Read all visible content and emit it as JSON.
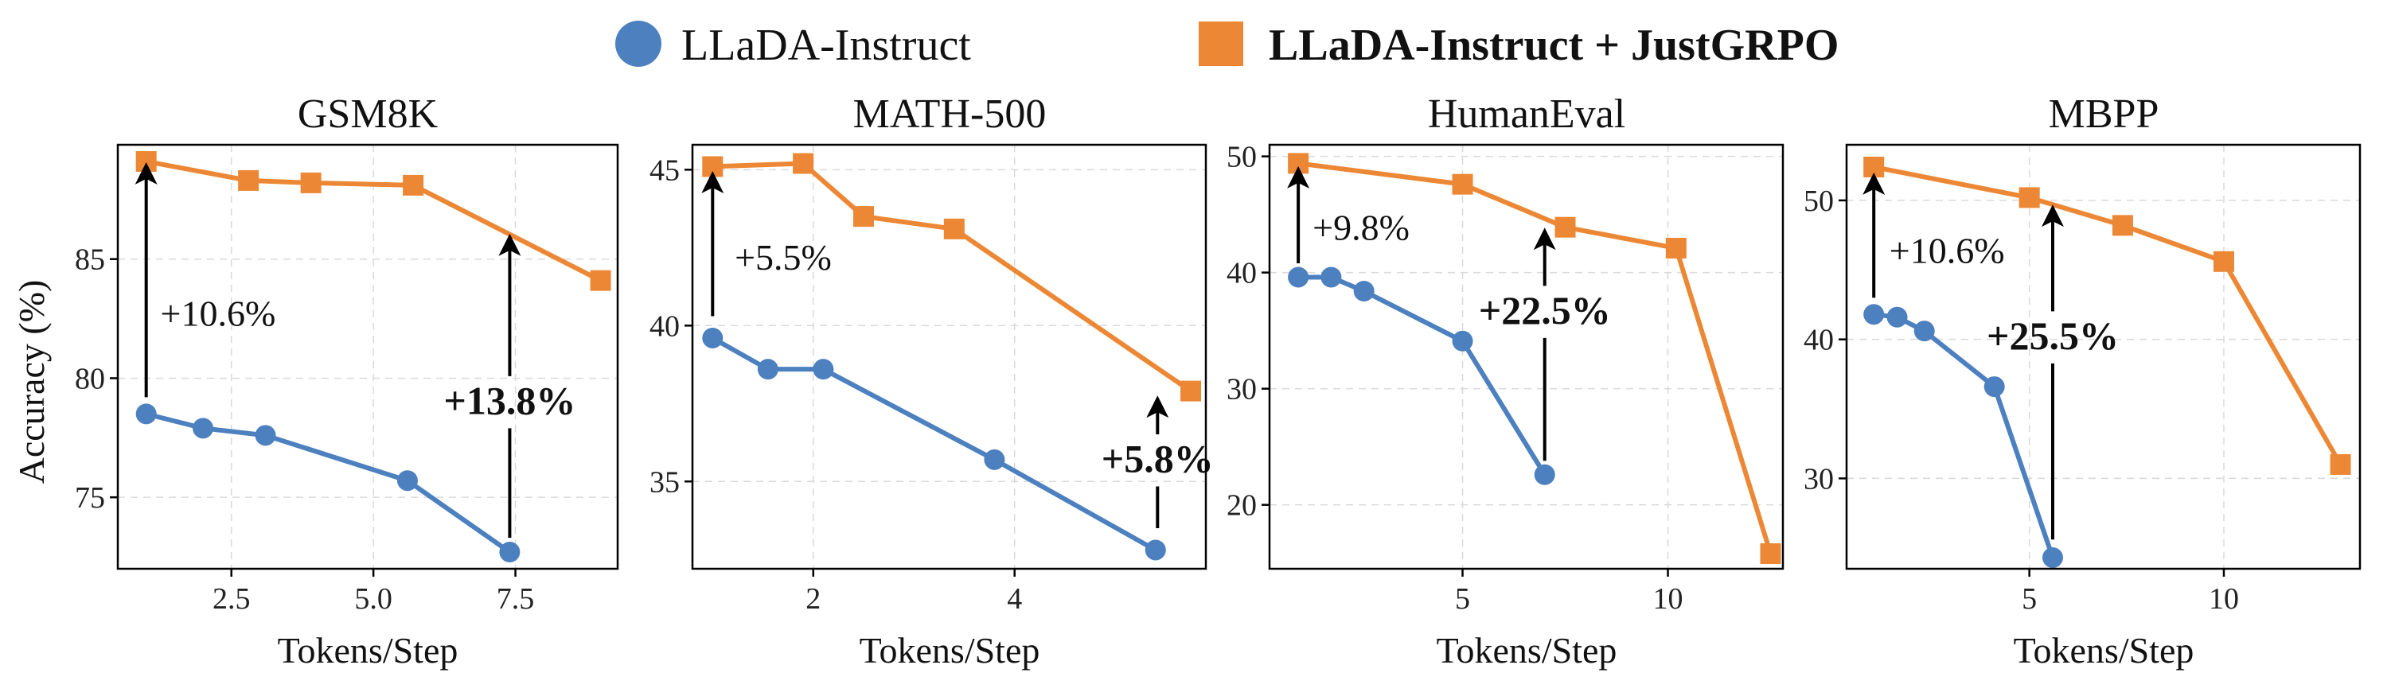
{
  "legend": {
    "series_a": "LLaDA-Instruct",
    "series_b": "LLaDA-Instruct + JustGRPO"
  },
  "colors": {
    "series_a": "#4c80bf",
    "series_b": "#ec8835",
    "arrow": "#000000"
  },
  "chart_data": [
    {
      "type": "line",
      "title": "GSM8K",
      "xlabel": "Tokens/Step",
      "ylabel": "Accuracy (%)",
      "xlim": [
        0.5,
        9.3
      ],
      "ylim": [
        72.0,
        89.8
      ],
      "xticks": [
        2.5,
        5.0,
        7.5
      ],
      "xtick_labels": [
        "2.5",
        "5.0",
        "7.5"
      ],
      "yticks": [
        75,
        80,
        85
      ],
      "ytick_labels": [
        "75",
        "80",
        "85"
      ],
      "grid": true,
      "series": [
        {
          "name": "LLaDA-Instruct",
          "x": [
            1.0,
            2.0,
            3.1,
            5.6,
            7.4
          ],
          "y": [
            78.5,
            77.9,
            77.6,
            75.7,
            72.7
          ]
        },
        {
          "name": "LLaDA-Instruct + JustGRPO",
          "x": [
            1.0,
            2.8,
            3.9,
            5.7,
            9.0
          ],
          "y": [
            89.1,
            88.3,
            88.2,
            88.1,
            84.1
          ]
        }
      ],
      "annotations": [
        {
          "text": "+10.6%",
          "bold": false,
          "arrow_x": 1.0,
          "arrow_from": 79.2,
          "arrow_to": 88.6,
          "text_x": 1.25,
          "text_y": 82.2,
          "anchor": "start"
        },
        {
          "text": "+13.8%",
          "bold": true,
          "arrow_x": 7.4,
          "arrow_from": 73.3,
          "arrow_to": 85.6,
          "text_x": 7.4,
          "text_y": 78.5,
          "anchor": "middle"
        }
      ]
    },
    {
      "type": "line",
      "title": "MATH-500",
      "xlabel": "Tokens/Step",
      "ylabel": "",
      "xlim": [
        0.8,
        5.9
      ],
      "ylim": [
        32.2,
        45.8
      ],
      "xticks": [
        2,
        4
      ],
      "xtick_labels": [
        "2",
        "4"
      ],
      "yticks": [
        35,
        40,
        45
      ],
      "ytick_labels": [
        "35",
        "40",
        "45"
      ],
      "grid": true,
      "series": [
        {
          "name": "LLaDA-Instruct",
          "x": [
            1.0,
            1.55,
            2.1,
            3.8,
            5.4
          ],
          "y": [
            39.6,
            38.6,
            38.6,
            35.7,
            32.8
          ]
        },
        {
          "name": "LLaDA-Instruct + JustGRPO",
          "x": [
            1.0,
            1.9,
            2.5,
            3.4,
            5.75
          ],
          "y": [
            45.1,
            45.2,
            43.5,
            43.1,
            37.9
          ]
        }
      ],
      "annotations": [
        {
          "text": "+5.5%",
          "bold": false,
          "arrow_x": 1.0,
          "arrow_from": 40.3,
          "arrow_to": 44.6,
          "text_x": 1.22,
          "text_y": 41.8,
          "anchor": "start"
        },
        {
          "text": "+5.8%",
          "bold": true,
          "arrow_x": 5.42,
          "arrow_from": 33.5,
          "arrow_to": 37.4,
          "text_x": 5.42,
          "text_y": 35.3,
          "anchor": "middle"
        }
      ]
    },
    {
      "type": "line",
      "title": "HumanEval",
      "xlabel": "Tokens/Step",
      "ylabel": "",
      "xlim": [
        0.3,
        12.8
      ],
      "ylim": [
        14.5,
        51.0
      ],
      "xticks": [
        5,
        10
      ],
      "xtick_labels": [
        "5",
        "10"
      ],
      "yticks": [
        20,
        30,
        40,
        50
      ],
      "ytick_labels": [
        "20",
        "30",
        "40",
        "50"
      ],
      "grid": true,
      "series": [
        {
          "name": "LLaDA-Instruct",
          "x": [
            1.0,
            1.8,
            2.6,
            5.0,
            7.0
          ],
          "y": [
            39.6,
            39.6,
            38.4,
            34.1,
            22.6
          ]
        },
        {
          "name": "LLaDA-Instruct + JustGRPO",
          "x": [
            1.0,
            5.0,
            7.5,
            10.2,
            12.5
          ],
          "y": [
            49.4,
            47.6,
            43.9,
            42.1,
            15.8
          ]
        }
      ],
      "annotations": [
        {
          "text": "+9.8%",
          "bold": false,
          "arrow_x": 1.0,
          "arrow_from": 40.8,
          "arrow_to": 48.2,
          "text_x": 1.35,
          "text_y": 42.8,
          "anchor": "start"
        },
        {
          "text": "+22.5%",
          "bold": true,
          "arrow_x": 7.0,
          "arrow_from": 23.8,
          "arrow_to": 42.9,
          "text_x": 7.0,
          "text_y": 35.6,
          "anchor": "middle"
        }
      ]
    },
    {
      "type": "line",
      "title": "MBPP",
      "xlabel": "Tokens/Step",
      "ylabel": "",
      "xlim": [
        0.3,
        13.5
      ],
      "ylim": [
        23.5,
        54.0
      ],
      "xticks": [
        5,
        10
      ],
      "xtick_labels": [
        "5",
        "10"
      ],
      "yticks": [
        30,
        40,
        50
      ],
      "ytick_labels": [
        "30",
        "40",
        "50"
      ],
      "grid": true,
      "series": [
        {
          "name": "LLaDA-Instruct",
          "x": [
            1.0,
            1.6,
            2.3,
            4.1,
            5.6
          ],
          "y": [
            41.8,
            41.6,
            40.6,
            36.6,
            24.3
          ]
        },
        {
          "name": "LLaDA-Instruct + JustGRPO",
          "x": [
            1.0,
            5.0,
            7.4,
            10.0,
            13.0
          ],
          "y": [
            52.4,
            50.2,
            48.2,
            45.6,
            31.0
          ]
        }
      ],
      "annotations": [
        {
          "text": "+10.6%",
          "bold": false,
          "arrow_x": 1.0,
          "arrow_from": 43.0,
          "arrow_to": 51.2,
          "text_x": 1.4,
          "text_y": 45.5,
          "anchor": "start"
        },
        {
          "text": "+25.5%",
          "bold": true,
          "arrow_x": 5.6,
          "arrow_from": 25.6,
          "arrow_to": 48.9,
          "text_x": 5.6,
          "text_y": 39.3,
          "anchor": "middle"
        }
      ]
    }
  ]
}
